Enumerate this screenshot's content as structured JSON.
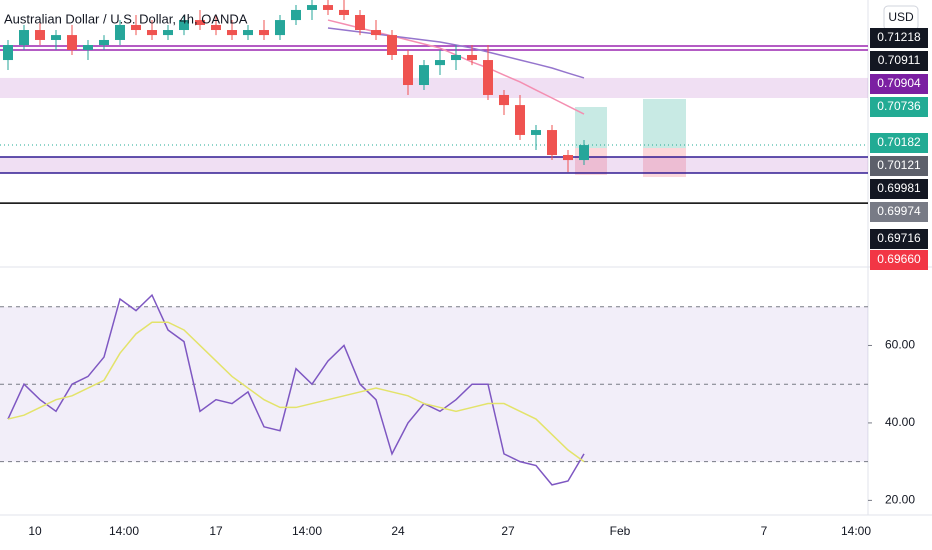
{
  "chart_data": [
    {
      "type": "candlestick",
      "title": "Australian Dollar / U.S. Dollar, 4h, OANDA",
      "currency_button": "USD",
      "ylim": [
        0.6949,
        0.71591
      ],
      "up_color": "#26a69a",
      "down_color": "#ef5350",
      "candles": [
        [
          0.71115,
          0.71274,
          0.71036,
          0.71234
        ],
        [
          0.71234,
          0.71393,
          0.71195,
          0.71353
        ],
        [
          0.71353,
          0.71432,
          0.71234,
          0.71274
        ],
        [
          0.71274,
          0.71353,
          0.71195,
          0.71313
        ],
        [
          0.71313,
          0.71393,
          0.71155,
          0.71195
        ],
        [
          0.71195,
          0.71274,
          0.71115,
          0.71234
        ],
        [
          0.71234,
          0.71313,
          0.71195,
          0.71274
        ],
        [
          0.71274,
          0.71432,
          0.71234,
          0.71393
        ],
        [
          0.71393,
          0.71472,
          0.71313,
          0.71353
        ],
        [
          0.71353,
          0.71432,
          0.71274,
          0.71313
        ],
        [
          0.71313,
          0.71393,
          0.71274,
          0.71353
        ],
        [
          0.71353,
          0.71472,
          0.71313,
          0.71432
        ],
        [
          0.71432,
          0.71512,
          0.71353,
          0.71393
        ],
        [
          0.71393,
          0.71472,
          0.71313,
          0.71353
        ],
        [
          0.71353,
          0.71432,
          0.71274,
          0.71313
        ],
        [
          0.71313,
          0.71393,
          0.71274,
          0.71353
        ],
        [
          0.71353,
          0.71432,
          0.71274,
          0.71313
        ],
        [
          0.71313,
          0.71472,
          0.71274,
          0.71432
        ],
        [
          0.71432,
          0.71551,
          0.71393,
          0.71512
        ],
        [
          0.71512,
          0.71591,
          0.71432,
          0.71551
        ],
        [
          0.71551,
          0.71591,
          0.71472,
          0.71512
        ],
        [
          0.71512,
          0.71591,
          0.71432,
          0.71472
        ],
        [
          0.71472,
          0.71512,
          0.71313,
          0.71353
        ],
        [
          0.71353,
          0.71432,
          0.71274,
          0.71313
        ],
        [
          0.71313,
          0.71353,
          0.71115,
          0.71155
        ],
        [
          0.71155,
          0.71195,
          0.70838,
          0.70917
        ],
        [
          0.70917,
          0.71115,
          0.70877,
          0.71075
        ],
        [
          0.71075,
          0.71195,
          0.70996,
          0.71115
        ],
        [
          0.71115,
          0.71234,
          0.71036,
          0.71155
        ],
        [
          0.71155,
          0.71234,
          0.71075,
          0.71115
        ],
        [
          0.71115,
          0.71234,
          0.70798,
          0.70838
        ],
        [
          0.70838,
          0.70877,
          0.70679,
          0.70758
        ],
        [
          0.70758,
          0.70838,
          0.70481,
          0.70521
        ],
        [
          0.70521,
          0.706,
          0.70402,
          0.7056
        ],
        [
          0.7056,
          0.706,
          0.70322,
          0.70362
        ],
        [
          0.70362,
          0.70402,
          0.70227,
          0.70322
        ],
        [
          0.70322,
          0.70481,
          0.70283,
          0.70441
        ]
      ],
      "lines": [
        {
          "color": "#f48fb1",
          "values": [
            null,
            null,
            null,
            null,
            null,
            null,
            null,
            null,
            null,
            null,
            null,
            null,
            null,
            null,
            null,
            null,
            null,
            null,
            null,
            null,
            0.71432,
            0.71401,
            0.71369,
            0.71337,
            0.71306,
            0.71274,
            0.71242,
            0.7121,
            0.71155,
            0.71099,
            0.71052,
            0.70996,
            0.70941,
            0.70877,
            0.70814,
            0.7075,
            0.70687
          ]
        },
        {
          "color": "#9575cd",
          "values": [
            null,
            null,
            null,
            null,
            null,
            null,
            null,
            null,
            null,
            null,
            null,
            null,
            null,
            null,
            null,
            null,
            null,
            null,
            null,
            null,
            0.71369,
            0.71353,
            0.71337,
            0.71321,
            0.71306,
            0.7129,
            0.71274,
            0.71258,
            0.71234,
            0.7121,
            0.71179,
            0.71147,
            0.71115,
            0.71084,
            0.71052,
            0.71012,
            0.70973
          ]
        }
      ],
      "levels": [
        {
          "value": 0.71226,
          "color": "#9c27b0"
        },
        {
          "value": 0.71195,
          "color": "#9c27b0"
        },
        {
          "value": 0.70346,
          "color": "#311b92"
        },
        {
          "value": 0.70219,
          "color": "#311b92"
        },
        {
          "value": 0.69981,
          "color": "#000000"
        }
      ],
      "zones": [
        {
          "from": 0.70973,
          "to": 0.70814,
          "color": "#9c27b0"
        },
        {
          "from": 0.70346,
          "to": 0.70219,
          "color": "#9c27b0"
        }
      ],
      "price_labels": [
        {
          "label": "0.71218",
          "color": "#131722"
        },
        {
          "label": "0.70911",
          "color": "#131722"
        },
        {
          "label": "0.70904",
          "color": "#7b1fa2"
        },
        {
          "label": "0.70736",
          "color": "#22ab94"
        },
        {
          "label": "0.70182",
          "color": "#22ab94"
        },
        {
          "label": "0.70121",
          "color": "#5d606b"
        },
        {
          "label": "0.69981",
          "color": "#131722"
        },
        {
          "label": "0.69974",
          "color": "#787b86"
        },
        {
          "label": "0.69716",
          "color": "#131722"
        },
        {
          "label": "0.69660",
          "color": "#f23645"
        }
      ],
      "x_labels": [
        "10",
        "14:00",
        "17",
        "14:00",
        "24",
        "27",
        "Feb",
        "7",
        "14:00"
      ]
    },
    {
      "type": "line",
      "ylim": [
        17,
        80
      ],
      "yticks": [
        {
          "value": 60,
          "label": "60.00"
        },
        {
          "value": 40,
          "label": "40.00"
        },
        {
          "value": 20,
          "label": "20.00"
        }
      ],
      "band": [
        30,
        70
      ],
      "reference_lines": [
        70,
        50,
        30
      ],
      "lines": [
        {
          "color": "#7e57c2",
          "values": [
            41,
            50,
            46,
            43,
            50,
            52,
            57,
            72,
            69,
            73,
            64,
            61,
            43,
            46,
            45,
            48,
            39,
            38,
            54,
            50,
            56,
            60,
            50,
            46,
            32,
            40,
            45,
            43,
            46,
            50,
            50,
            32,
            30,
            29,
            24,
            25,
            32
          ]
        },
        {
          "color": "#e3e36a",
          "values": [
            41,
            42,
            44,
            46,
            47,
            49,
            51,
            58,
            63,
            66,
            66,
            64,
            60,
            56,
            52,
            49,
            46,
            44,
            44,
            45,
            46,
            47,
            48,
            49,
            48,
            47,
            45,
            44,
            43,
            44,
            45,
            45,
            43,
            41,
            37,
            33,
            30
          ]
        }
      ]
    }
  ]
}
